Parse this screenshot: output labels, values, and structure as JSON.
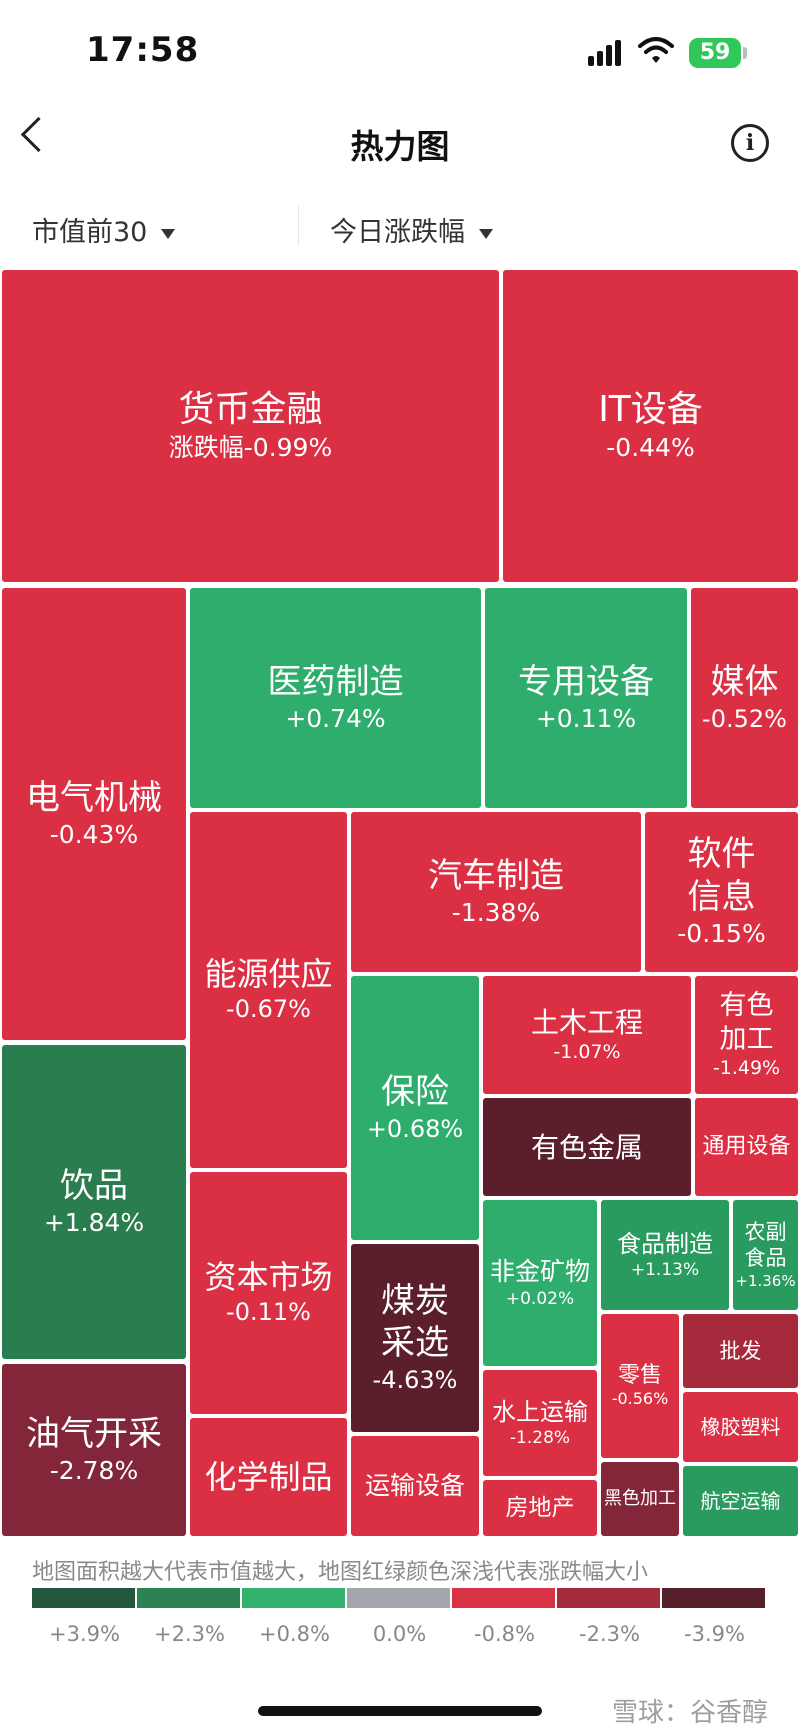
{
  "status_bar": {
    "time": "17:58",
    "battery": "59"
  },
  "header": {
    "title": "热力图",
    "back_icon": "chevron-left-icon",
    "info_icon": "info-circle-icon"
  },
  "filters": {
    "scope": "市值前30",
    "metric": "今日涨跌幅"
  },
  "colors": {
    "red": "#db2f43",
    "dark_red": "#a62a3c",
    "darkest": "#5a1f2b",
    "green": "#2fad6d",
    "dark_green": "#2a7d4f",
    "neutral": "#a3a6ad"
  },
  "tiles": {
    "huobi": {
      "name": "货币金融",
      "change": "涨跌幅-0.99%"
    },
    "it": {
      "name": "IT设备",
      "change": "-0.44%"
    },
    "dianqi": {
      "name": "电气机械",
      "change": "-0.43%"
    },
    "yiyao": {
      "name": "医药制造",
      "change": "+0.74%"
    },
    "zhuanyong": {
      "name": "专用设备",
      "change": "+0.11%"
    },
    "meiti": {
      "name": "媒体",
      "change": "-0.52%"
    },
    "nengyuan": {
      "name": "能源供应",
      "change": "-0.67%"
    },
    "qiche": {
      "name": "汽车制造",
      "change": "-1.38%"
    },
    "ruanjian": {
      "name": "软件信息",
      "change": "-0.15%"
    },
    "tumu": {
      "name": "土木工程",
      "change": "-1.07%"
    },
    "youse_jg": {
      "name": "有色加工",
      "change": "-1.49%"
    },
    "baoxian": {
      "name": "保险",
      "change": "+0.68%"
    },
    "yinpin": {
      "name": "饮品",
      "change": "+1.84%"
    },
    "youse_js": {
      "name": "有色金属"
    },
    "tongyong": {
      "name": "通用设备"
    },
    "feijin": {
      "name": "非金矿物",
      "change": "+0.02%"
    },
    "shipin": {
      "name": "食品制造",
      "change": "+1.13%"
    },
    "nongfu": {
      "name": "农副食品",
      "change": "+1.36%"
    },
    "ziben": {
      "name": "资本市场",
      "change": "-0.11%"
    },
    "meitan": {
      "name": "煤炭采选",
      "change": "-4.63%"
    },
    "lingshou": {
      "name": "零售",
      "change": "-0.56%"
    },
    "pifa": {
      "name": "批发"
    },
    "youqi": {
      "name": "油气开采",
      "change": "-2.78%"
    },
    "shuishang": {
      "name": "水上运输",
      "change": "-1.28%"
    },
    "xiangjiao": {
      "name": "橡胶塑料"
    },
    "huaxue": {
      "name": "化学制品"
    },
    "yunshu": {
      "name": "运输设备"
    },
    "fangdichan": {
      "name": "房地产"
    },
    "heise": {
      "name": "黑色加工"
    },
    "hangkong": {
      "name": "航空运输"
    }
  },
  "legend": {
    "note": "地图面积越大代表市值越大，地图红绿颜色深浅代表涨跌幅大小",
    "labels": [
      "+3.9%",
      "+2.3%",
      "+0.8%",
      "0.0%",
      "-0.8%",
      "-2.3%",
      "-3.9%"
    ],
    "colors": [
      "#24573e",
      "#2d8254",
      "#33b26d",
      "#a3a6ad",
      "#da3245",
      "#a52a3c",
      "#55202b"
    ]
  },
  "watermark": "雪球：谷香醇"
}
